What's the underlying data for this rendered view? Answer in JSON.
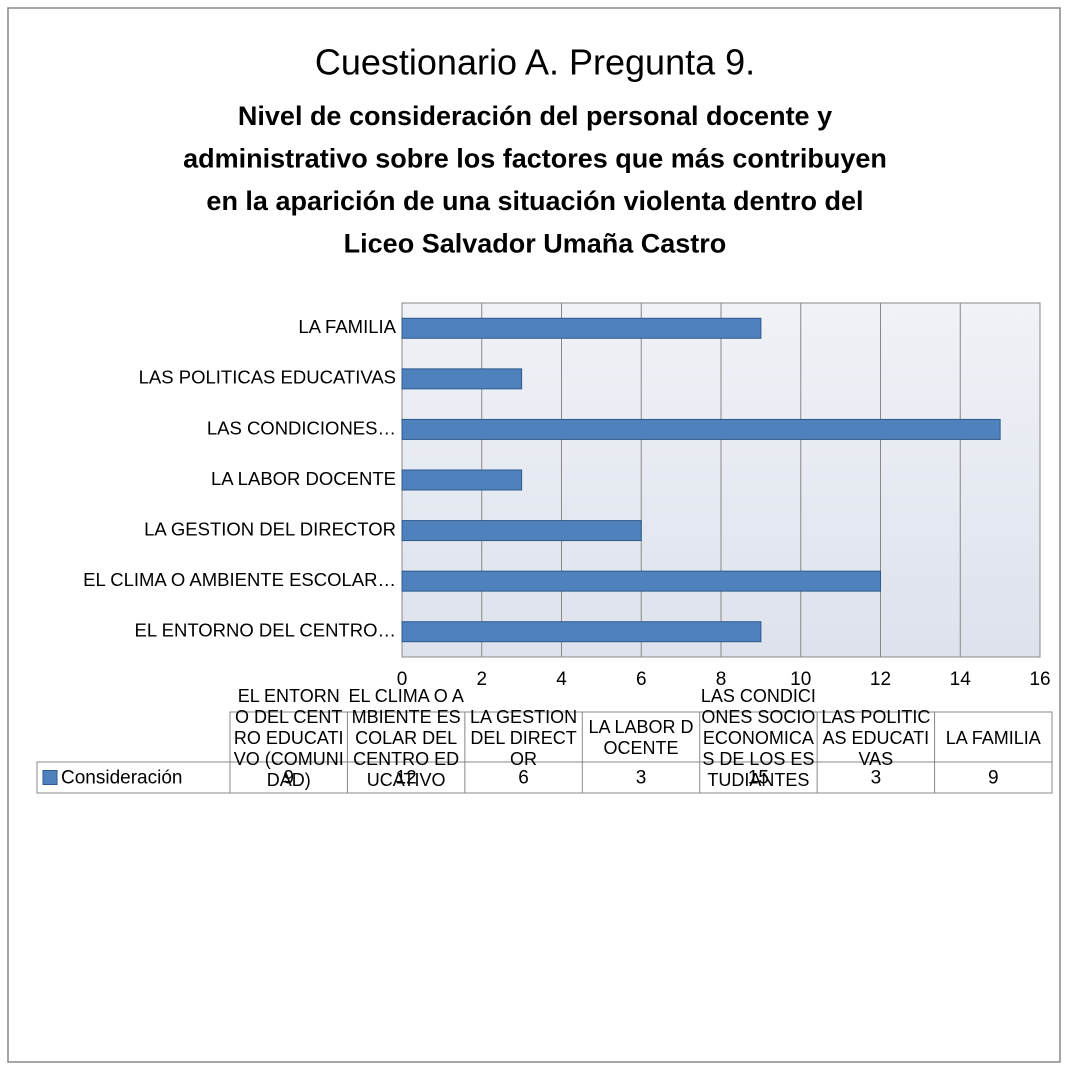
{
  "chart_data": {
    "type": "bar",
    "orientation": "horizontal",
    "title": "Cuestionario A. Pregunta 9.",
    "subtitle_lines": [
      "Nivel de consideración del personal docente y",
      "administrativo sobre los factores que más contribuyen",
      "en la aparición de una situación violenta dentro del",
      "Liceo Salvador Umaña Castro"
    ],
    "categories": [
      "EL ENTORNO DEL CENTRO…",
      "EL CLIMA O AMBIENTE ESCOLAR…",
      "LA GESTION DEL DIRECTOR",
      "LA LABOR DOCENTE",
      "LAS CONDICIONES…",
      "LAS POLITICAS EDUCATIVAS",
      "LA FAMILIA"
    ],
    "table_headers": [
      "EL ENTORNO DEL CENTRO EDUCATIVO (COMUNIDAD)",
      "EL CLIMA O AMBIENTE ESCOLAR DEL CENTRO EDUCATIVO",
      "LA GESTION DEL DIRECTOR",
      "LA LABOR DOCENTE",
      "LAS CONDICIONES SOCIOECONOMICAS DE LOS ESTUDIANTES",
      "LAS POLITICAS EDUCATIVAS",
      "LA FAMILIA"
    ],
    "series": [
      {
        "name": "Consideración",
        "color": "#4f81bd",
        "values": [
          9,
          12,
          6,
          3,
          15,
          3,
          9
        ]
      }
    ],
    "xlim": [
      0,
      16
    ],
    "xticks": [
      0,
      2,
      4,
      6,
      8,
      10,
      12,
      14,
      16
    ],
    "grid": true
  }
}
